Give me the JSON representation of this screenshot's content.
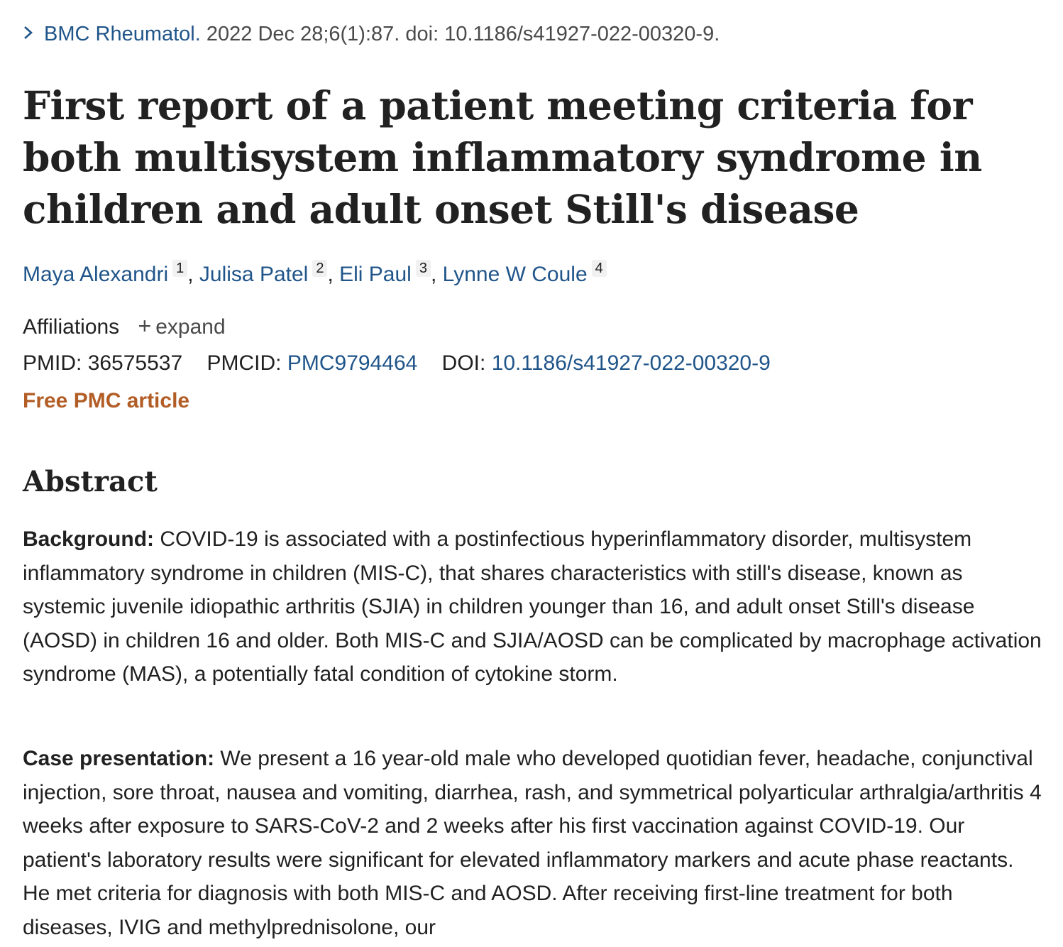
{
  "citation": {
    "journal": "BMC Rheumatol.",
    "details": "2022 Dec 28;6(1):87. doi: 10.1186/s41927-022-00320-9."
  },
  "title": "First report of a patient meeting criteria for both multisystem inflammatory syndrome in children and adult onset Still's disease",
  "authors": [
    {
      "name": "Maya Alexandri",
      "aff": "1",
      "sep": ", "
    },
    {
      "name": "Julisa Patel",
      "aff": "2",
      "sep": ", "
    },
    {
      "name": "Eli Paul",
      "aff": "3",
      "sep": ", "
    },
    {
      "name": "Lynne W Coule",
      "aff": "4",
      "sep": ""
    }
  ],
  "affiliations": {
    "label": "Affiliations",
    "expand_label": "expand"
  },
  "ids": {
    "pmid_label": "PMID:",
    "pmid": "36575537",
    "pmcid_label": "PMCID:",
    "pmcid": "PMC9794464",
    "doi_label": "DOI:",
    "doi": "10.1186/s41927-022-00320-9"
  },
  "free_article": "Free PMC article",
  "abstract": {
    "heading": "Abstract",
    "background_label": "Background:",
    "background_text": "COVID-19 is associated with a postinfectious hyperinflammatory disorder, multisystem inflammatory syndrome in children (MIS-C), that shares characteristics with still's disease, known as systemic juvenile idiopathic arthritis (SJIA) in children younger than 16, and adult onset Still's disease (AOSD) in children 16 and older. Both MIS-C and SJIA/AOSD can be complicated by macrophage activation syndrome (MAS), a potentially fatal condition of cytokine storm.",
    "case_label": "Case presentation:",
    "case_text": "We present a 16 year-old male who developed quotidian fever, headache, conjunctival injection, sore throat, nausea and vomiting, diarrhea, rash, and symmetrical polyarticular arthralgia/arthritis 4 weeks after exposure to SARS-CoV-2 and 2 weeks after his first vaccination against COVID-19. Our patient's laboratory results were significant for elevated inflammatory markers and acute phase reactants. He met criteria for diagnosis with both MIS-C and AOSD. After receiving first-line treatment for both diseases, IVIG and methylprednisolone, our"
  },
  "colors": {
    "link": "#20558a",
    "free": "#b25d25",
    "text": "#212121"
  }
}
